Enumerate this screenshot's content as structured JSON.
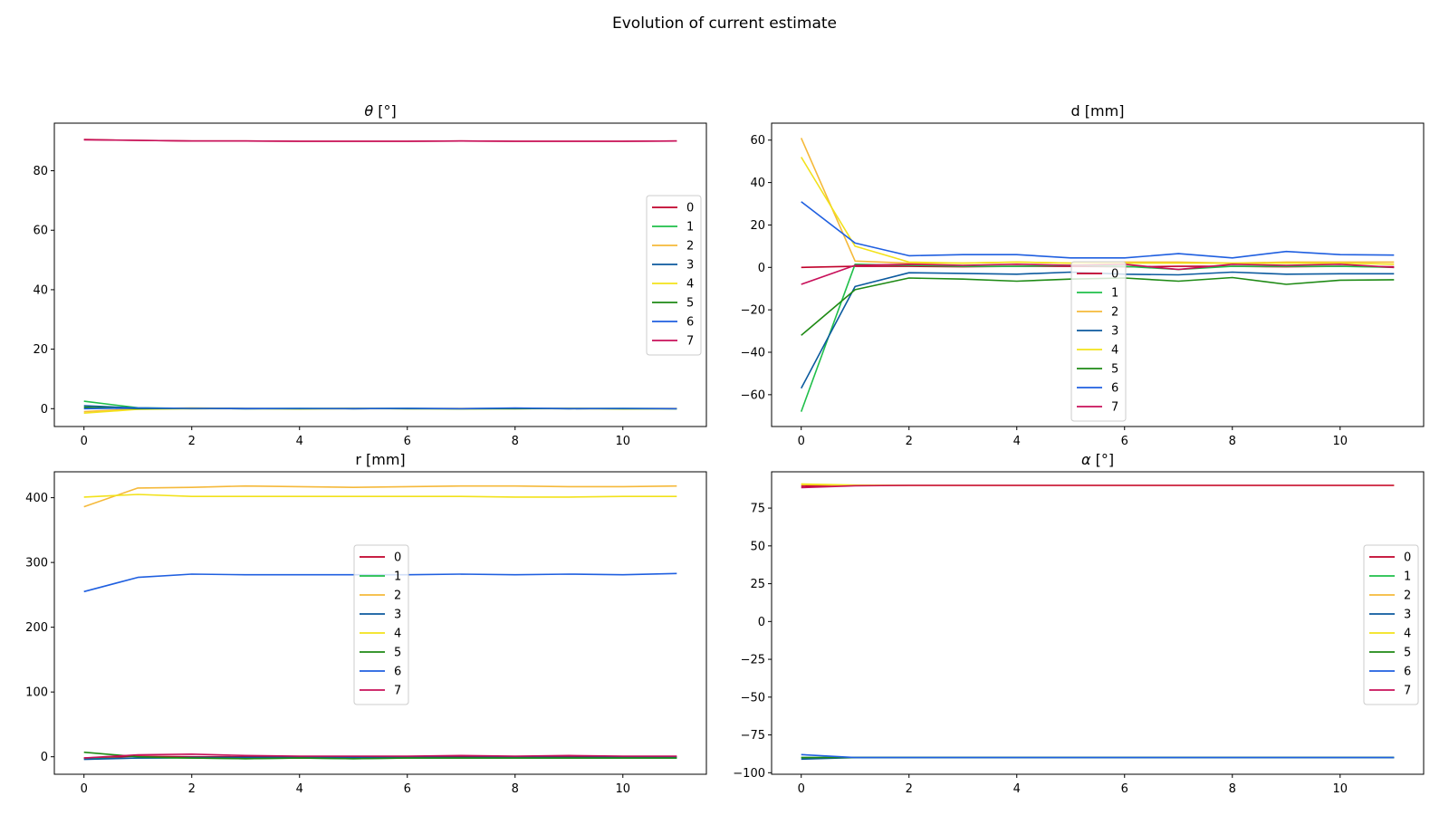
{
  "figure": {
    "title": "Evolution of current estimate"
  },
  "colors": {
    "0": "#c0002a",
    "1": "#1fbf4a",
    "2": "#f5b93a",
    "3": "#0b5a9e",
    "4": "#f2e21a",
    "5": "#1e8a14",
    "6": "#1f5fe0",
    "7": "#c8105a"
  },
  "chart_data": [
    {
      "type": "line",
      "title": "θ [°]",
      "title_symbol": "θ",
      "title_unit": " [°]",
      "xlim": [
        -0.55,
        11.55
      ],
      "ylim": [
        -6,
        96
      ],
      "xticks": [
        0,
        2,
        4,
        6,
        8,
        10
      ],
      "yticks": [
        0,
        20,
        40,
        60,
        80
      ],
      "grid": false,
      "legend_position": "center-right",
      "x": [
        0,
        1,
        2,
        3,
        4,
        5,
        6,
        7,
        8,
        9,
        10,
        11
      ],
      "series": [
        {
          "name": "0",
          "values": [
            90.5,
            90.2,
            90.0,
            90.0,
            89.9,
            89.9,
            89.9,
            90.0,
            89.9,
            89.9,
            89.9,
            90.0
          ]
        },
        {
          "name": "1",
          "values": [
            2.5,
            0.3,
            0.1,
            0.0,
            0.1,
            0.0,
            0.1,
            -0.1,
            0.1,
            0.0,
            0.1,
            0.0
          ]
        },
        {
          "name": "2",
          "values": [
            -1.0,
            0.0,
            0.2,
            0.1,
            0.0,
            0.1,
            0.0,
            0.1,
            0.0,
            0.1,
            0.0,
            0.1
          ]
        },
        {
          "name": "3",
          "values": [
            1.0,
            0.2,
            0.0,
            0.1,
            0.0,
            0.0,
            0.1,
            0.0,
            0.1,
            0.0,
            0.0,
            0.0
          ]
        },
        {
          "name": "4",
          "values": [
            -1.5,
            -0.2,
            0.0,
            0.0,
            -0.1,
            0.0,
            0.0,
            -0.1,
            0.0,
            0.0,
            -0.1,
            0.0
          ]
        },
        {
          "name": "5",
          "values": [
            0.5,
            0.0,
            0.1,
            0.0,
            0.0,
            0.1,
            0.0,
            0.0,
            0.0,
            0.1,
            0.0,
            0.0
          ]
        },
        {
          "name": "6",
          "values": [
            0.0,
            0.2,
            0.1,
            0.0,
            0.1,
            0.0,
            0.1,
            0.0,
            0.2,
            0.0,
            0.1,
            0.0
          ]
        },
        {
          "name": "7",
          "values": [
            90.4,
            90.2,
            90.0,
            90.0,
            89.9,
            89.9,
            89.9,
            90.0,
            89.9,
            89.9,
            89.9,
            90.0
          ]
        }
      ]
    },
    {
      "type": "line",
      "title": "d [mm]",
      "xlim": [
        -0.55,
        11.55
      ],
      "ylim": [
        -75,
        68
      ],
      "xticks": [
        0,
        2,
        4,
        6,
        8,
        10
      ],
      "yticks": [
        -60,
        -40,
        -20,
        0,
        20,
        40,
        60
      ],
      "grid": false,
      "legend_position": "lower-center",
      "x": [
        0,
        1,
        2,
        3,
        4,
        5,
        6,
        7,
        8,
        9,
        10,
        11
      ],
      "series": [
        {
          "name": "0",
          "values": [
            0,
            0.5,
            0.5,
            0.3,
            0.5,
            0.5,
            0.3,
            0.5,
            0.5,
            0.3,
            0.5,
            0.3
          ]
        },
        {
          "name": "1",
          "values": [
            -68,
            1.5,
            1.0,
            0.5,
            0.5,
            1.0,
            0.5,
            -1.0,
            0.5,
            0.5,
            0.5,
            0.0
          ]
        },
        {
          "name": "2",
          "values": [
            61,
            3.0,
            2.0,
            2.0,
            2.5,
            2.0,
            2.5,
            2.5,
            2.0,
            2.5,
            2.5,
            2.5
          ]
        },
        {
          "name": "3",
          "values": [
            -57,
            -9,
            -2.5,
            -2.8,
            -3.2,
            -2.2,
            -3.2,
            -3.5,
            -2.2,
            -3.2,
            -3.0,
            -3.0
          ]
        },
        {
          "name": "4",
          "values": [
            52,
            10,
            2.5,
            2.0,
            2.5,
            2.0,
            2.0,
            2.0,
            2.0,
            2.0,
            2.0,
            1.5
          ]
        },
        {
          "name": "5",
          "values": [
            -32,
            -10.5,
            -5.0,
            -5.5,
            -6.5,
            -5.5,
            -5.0,
            -6.5,
            -4.8,
            -8.0,
            -6.0,
            -5.8
          ]
        },
        {
          "name": "6",
          "values": [
            31,
            11.5,
            5.5,
            6.0,
            6.0,
            4.5,
            4.5,
            6.5,
            4.5,
            7.5,
            6.0,
            5.8
          ]
        },
        {
          "name": "7",
          "values": [
            -8,
            1.0,
            1.5,
            1.0,
            1.5,
            1.0,
            1.5,
            -1.0,
            1.5,
            1.0,
            1.5,
            0.0
          ]
        }
      ]
    },
    {
      "type": "line",
      "title": "r [mm]",
      "xlim": [
        -0.55,
        11.55
      ],
      "ylim": [
        -27,
        440
      ],
      "xticks": [
        0,
        2,
        4,
        6,
        8,
        10
      ],
      "yticks": [
        0,
        100,
        200,
        300,
        400
      ],
      "grid": false,
      "legend_position": "center",
      "x": [
        0,
        1,
        2,
        3,
        4,
        5,
        6,
        7,
        8,
        9,
        10,
        11
      ],
      "series": [
        {
          "name": "0",
          "values": [
            -2,
            1,
            0,
            0,
            0,
            0,
            0,
            0,
            0,
            0,
            0,
            0
          ]
        },
        {
          "name": "1",
          "values": [
            -3,
            -2,
            -2,
            -3,
            -2,
            -3,
            -2,
            -2,
            -2,
            -2,
            -2,
            -2
          ]
        },
        {
          "name": "2",
          "values": [
            386,
            415,
            416,
            418,
            417,
            416,
            417,
            418,
            418,
            417,
            417,
            418
          ]
        },
        {
          "name": "3",
          "values": [
            -4,
            -2,
            -1,
            -1,
            -1,
            -1,
            -1,
            -1,
            -1,
            -1,
            -1,
            -1
          ]
        },
        {
          "name": "4",
          "values": [
            401,
            405,
            402,
            402,
            402,
            402,
            402,
            402,
            401,
            401,
            402,
            402
          ]
        },
        {
          "name": "5",
          "values": [
            7,
            0,
            -2,
            -3,
            -2,
            -3,
            -2,
            -2,
            -2,
            -2,
            -2,
            -2
          ]
        },
        {
          "name": "6",
          "values": [
            255,
            277,
            282,
            281,
            281,
            281,
            281,
            282,
            281,
            282,
            281,
            283
          ]
        },
        {
          "name": "7",
          "values": [
            -2,
            3,
            4,
            2,
            1,
            1,
            1,
            2,
            1,
            2,
            1,
            1
          ]
        }
      ]
    },
    {
      "type": "line",
      "title": "α [°]",
      "title_symbol": "α",
      "title_unit": " [°]",
      "xlim": [
        -0.55,
        11.55
      ],
      "ylim": [
        -101,
        99
      ],
      "xticks": [
        0,
        2,
        4,
        6,
        8,
        10
      ],
      "yticks": [
        -100,
        -75,
        -50,
        -25,
        0,
        25,
        50,
        75
      ],
      "grid": false,
      "legend_position": "center-right",
      "x": [
        0,
        1,
        2,
        3,
        4,
        5,
        6,
        7,
        8,
        9,
        10,
        11
      ],
      "series": [
        {
          "name": "0",
          "values": [
            89.5,
            90.0,
            90.0,
            90.0,
            90.0,
            90.0,
            90.0,
            90.0,
            90.0,
            90.0,
            90.0,
            90.0
          ]
        },
        {
          "name": "1",
          "values": [
            -90.0,
            -90.0,
            -90.0,
            -90.0,
            -90.0,
            -90.0,
            -90.0,
            -90.0,
            -90.0,
            -90.0,
            -90.0,
            -90.0
          ]
        },
        {
          "name": "2",
          "values": [
            90.5,
            90.0,
            90.0,
            90.0,
            90.0,
            90.0,
            90.0,
            90.0,
            90.0,
            90.0,
            90.0,
            90.0
          ]
        },
        {
          "name": "3",
          "values": [
            -91.0,
            -90.0,
            -90.0,
            -90.0,
            -90.0,
            -90.0,
            -90.0,
            -90.0,
            -90.0,
            -90.0,
            -90.0,
            -90.0
          ]
        },
        {
          "name": "4",
          "values": [
            91.0,
            90.2,
            90.0,
            90.0,
            90.0,
            90.0,
            90.0,
            90.0,
            90.0,
            90.0,
            90.0,
            90.0
          ]
        },
        {
          "name": "5",
          "values": [
            -90.0,
            -90.0,
            -90.0,
            -90.0,
            -90.0,
            -90.0,
            -90.0,
            -90.0,
            -90.0,
            -90.0,
            -90.0,
            -90.0
          ]
        },
        {
          "name": "6",
          "values": [
            -88.0,
            -90.0,
            -90.0,
            -90.0,
            -90.0,
            -90.0,
            -90.0,
            -90.0,
            -90.0,
            -90.0,
            -90.0,
            -90.0
          ]
        },
        {
          "name": "7",
          "values": [
            88.5,
            89.8,
            90.0,
            90.0,
            90.0,
            90.0,
            90.0,
            90.0,
            90.0,
            90.0,
            90.0,
            90.0
          ]
        }
      ]
    }
  ]
}
